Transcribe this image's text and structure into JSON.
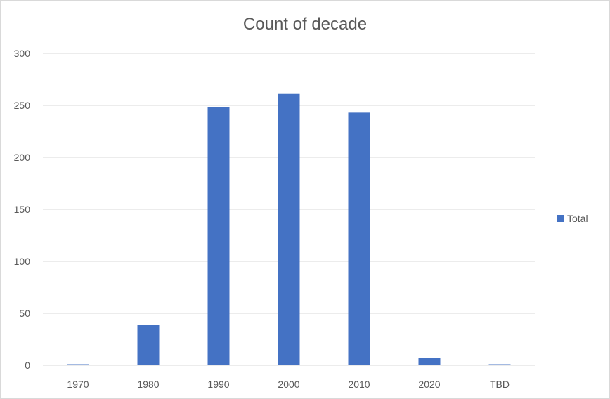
{
  "chart_data": {
    "type": "bar",
    "title": "Count of decade",
    "categories": [
      "1970",
      "1980",
      "1990",
      "2000",
      "2010",
      "2020",
      "TBD"
    ],
    "series": [
      {
        "name": "Total",
        "values": [
          1,
          39,
          248,
          261,
          243,
          7,
          1
        ]
      }
    ],
    "ylim": [
      0,
      300
    ],
    "yticks": [
      0,
      50,
      100,
      150,
      200,
      250,
      300
    ],
    "grid": true,
    "legend": "right",
    "bar_color": "#4472C4"
  }
}
